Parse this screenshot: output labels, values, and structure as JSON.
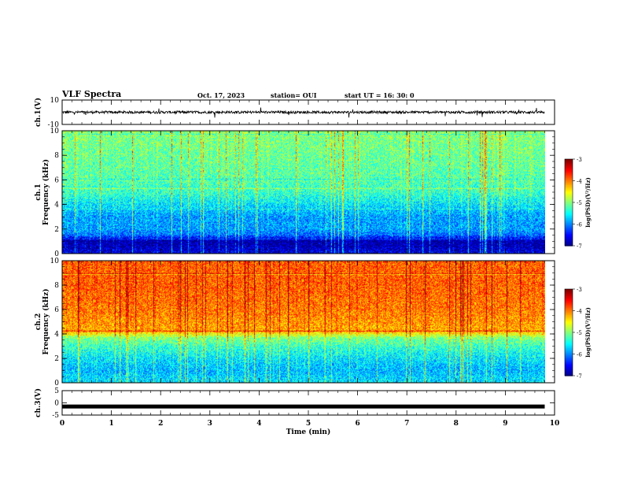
{
  "header": {
    "title": "VLF Spectra",
    "date": "Oct. 17, 2023",
    "station": "station= OUI",
    "start": "start  UT =   16: 30: 0"
  },
  "chart_data": [
    {
      "type": "line",
      "ylabel": "ch.1(V)",
      "ylim": [
        -10,
        10
      ],
      "yticks": [
        "10",
        "-10"
      ],
      "x_range": [
        0,
        9.8
      ],
      "baseline": 0,
      "amplitude": 1.5
    },
    {
      "type": "heatmap",
      "ylabel": [
        "ch.1",
        "Frequency  (kHz)"
      ],
      "ylim": [
        0,
        10
      ],
      "yticks": [
        "0",
        "2",
        "4",
        "6",
        "8",
        "10"
      ],
      "x_range": [
        0,
        9.8
      ],
      "colorbar": {
        "label": "log(PSD)(V²/Hz)",
        "range": [
          -7,
          -3
        ],
        "ticks": [
          "-3",
          "-4",
          "-5",
          "-6",
          "-7"
        ]
      },
      "profile_khz_log_psd": [
        [
          0,
          -6.6
        ],
        [
          0.5,
          -6.8
        ],
        [
          1.0,
          -6.9
        ],
        [
          1.5,
          -6.1
        ],
        [
          2.0,
          -5.9
        ],
        [
          3.0,
          -5.9
        ],
        [
          4.0,
          -5.6
        ],
        [
          5.0,
          -5.3
        ],
        [
          6.0,
          -5.2
        ],
        [
          8.0,
          -5.1
        ],
        [
          10.0,
          -5.0
        ]
      ]
    },
    {
      "type": "heatmap",
      "ylabel": [
        "ch.2",
        "Frequency  (kHz)"
      ],
      "ylim": [
        0,
        10
      ],
      "yticks": [
        "0",
        "2",
        "4",
        "6",
        "8",
        "10"
      ],
      "x_range": [
        0,
        9.8
      ],
      "colorbar": {
        "label": "log(PSD)(V²/Hz)",
        "range": [
          -7,
          -3
        ],
        "ticks": [
          "-3",
          "-4",
          "-5",
          "-6",
          "-7"
        ]
      },
      "profile_khz_log_psd": [
        [
          0,
          -5.6
        ],
        [
          1.0,
          -5.8
        ],
        [
          2.0,
          -5.6
        ],
        [
          3.0,
          -5.3
        ],
        [
          3.7,
          -5.0
        ],
        [
          4.2,
          -4.2
        ],
        [
          6.0,
          -4.0
        ],
        [
          8.0,
          -3.9
        ],
        [
          10.0,
          -3.9
        ]
      ]
    },
    {
      "type": "line",
      "ylabel": "ch.3(V)",
      "ylim": [
        -5,
        5
      ],
      "yticks": [
        "5",
        "0",
        "-5"
      ],
      "x_range": [
        0,
        9.8
      ],
      "baseline": -1.5,
      "amplitude": 0
    }
  ],
  "xaxis": {
    "label": "Time  (min)",
    "range": [
      0,
      10
    ],
    "ticks": [
      "0",
      "1",
      "2",
      "3",
      "4",
      "5",
      "6",
      "7",
      "8",
      "9",
      "10"
    ]
  }
}
